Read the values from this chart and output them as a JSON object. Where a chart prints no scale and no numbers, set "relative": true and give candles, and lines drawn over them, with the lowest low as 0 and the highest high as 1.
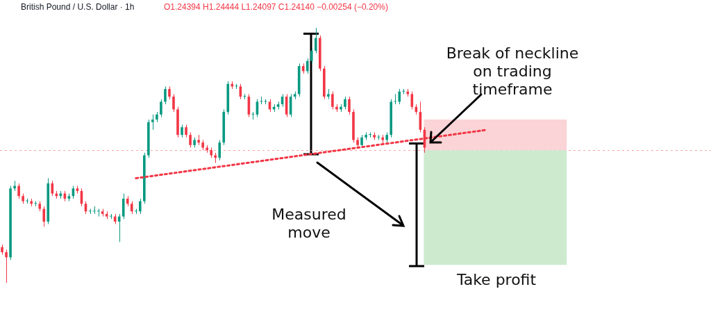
{
  "chart_data": {
    "type": "candlestick",
    "relative": true,
    "title": "British Pound / U.S. Dollar · 1h",
    "subtitle": "O1.24394 H1.24444 L1.24097 C1.24140 −0.00254 (−0.20%)",
    "tick_labels": false,
    "categories": [
      null,
      null,
      null,
      null,
      null,
      null,
      null,
      null,
      null,
      null,
      null,
      null,
      null,
      null,
      null,
      null,
      null,
      null,
      null,
      null,
      null,
      null,
      null,
      null,
      null,
      null,
      null,
      null,
      null,
      null,
      null,
      null,
      null,
      null,
      null,
      null,
      null,
      null,
      null,
      null,
      null,
      null,
      null,
      null,
      null,
      null,
      null,
      null,
      null,
      null,
      null,
      null,
      null,
      null,
      null,
      null,
      null,
      null,
      null,
      null,
      null,
      null,
      null,
      null,
      null,
      null,
      null,
      null,
      null,
      null,
      null,
      null,
      null,
      null,
      null,
      null,
      null,
      null,
      null,
      null,
      null,
      null,
      null,
      null,
      null,
      null,
      null,
      null,
      null,
      null,
      null,
      null,
      null,
      null,
      null,
      null,
      null,
      null,
      null,
      null,
      null,
      null,
      null,
      null,
      null,
      null,
      null,
      null,
      null,
      null,
      null,
      null,
      null,
      null,
      null,
      null,
      null,
      null,
      null,
      null,
      null,
      null,
      null,
      null,
      null,
      null,
      null,
      null,
      null,
      null,
      null,
      null,
      null,
      null,
      null,
      null,
      null,
      null,
      null,
      null,
      null,
      null,
      null,
      null,
      null,
      null,
      null,
      null,
      null,
      null,
      null,
      null,
      null,
      null,
      null,
      null,
      null,
      null,
      null,
      null,
      null,
      null,
      null,
      null,
      null,
      null,
      null,
      null,
      null,
      null
    ],
    "ohlc": [
      [
        0.14,
        0.15,
        0.11,
        0.12
      ],
      [
        0.12,
        0.13,
        0.0,
        0.1
      ],
      [
        0.1,
        0.38,
        0.09,
        0.37
      ],
      [
        0.37,
        0.4,
        0.36,
        0.38
      ],
      [
        0.38,
        0.39,
        0.33,
        0.34
      ],
      [
        0.34,
        0.35,
        0.31,
        0.32
      ],
      [
        0.32,
        0.33,
        0.31,
        0.32
      ],
      [
        0.32,
        0.33,
        0.3,
        0.31
      ],
      [
        0.31,
        0.32,
        0.3,
        0.31
      ],
      [
        0.31,
        0.32,
        0.28,
        0.29
      ],
      [
        0.29,
        0.3,
        0.22,
        0.24
      ],
      [
        0.24,
        0.41,
        0.23,
        0.39
      ],
      [
        0.39,
        0.4,
        0.34,
        0.35
      ],
      [
        0.35,
        0.36,
        0.33,
        0.34
      ],
      [
        0.34,
        0.36,
        0.33,
        0.35
      ],
      [
        0.35,
        0.36,
        0.32,
        0.33
      ],
      [
        0.33,
        0.35,
        0.32,
        0.34
      ],
      [
        0.34,
        0.38,
        0.33,
        0.37
      ],
      [
        0.37,
        0.38,
        0.35,
        0.36
      ],
      [
        0.36,
        0.37,
        0.3,
        0.31
      ],
      [
        0.31,
        0.32,
        0.27,
        0.28
      ],
      [
        0.28,
        0.29,
        0.27,
        0.28
      ],
      [
        0.28,
        0.3,
        0.27,
        0.28
      ],
      [
        0.28,
        0.29,
        0.26,
        0.28
      ],
      [
        0.28,
        0.29,
        0.26,
        0.27
      ],
      [
        0.27,
        0.28,
        0.25,
        0.26
      ],
      [
        0.26,
        0.27,
        0.25,
        0.26
      ],
      [
        0.26,
        0.27,
        0.23,
        0.24
      ],
      [
        0.24,
        0.27,
        0.16,
        0.26
      ],
      [
        0.26,
        0.35,
        0.25,
        0.33
      ],
      [
        0.33,
        0.34,
        0.3,
        0.31
      ],
      [
        0.31,
        0.32,
        0.27,
        0.28
      ],
      [
        0.28,
        0.29,
        0.27,
        0.28
      ],
      [
        0.28,
        0.33,
        0.27,
        0.32
      ],
      [
        0.32,
        0.51,
        0.31,
        0.5
      ],
      [
        0.5,
        0.64,
        0.49,
        0.63
      ],
      [
        0.63,
        0.66,
        0.6,
        0.64
      ],
      [
        0.64,
        0.67,
        0.63,
        0.66
      ],
      [
        0.66,
        0.72,
        0.65,
        0.71
      ],
      [
        0.71,
        0.77,
        0.7,
        0.76
      ],
      [
        0.76,
        0.77,
        0.72,
        0.73
      ],
      [
        0.73,
        0.74,
        0.67,
        0.68
      ],
      [
        0.68,
        0.69,
        0.57,
        0.58
      ],
      [
        0.58,
        0.62,
        0.57,
        0.61
      ],
      [
        0.61,
        0.62,
        0.57,
        0.58
      ],
      [
        0.58,
        0.59,
        0.53,
        0.54
      ],
      [
        0.54,
        0.57,
        0.53,
        0.56
      ],
      [
        0.56,
        0.58,
        0.54,
        0.55
      ],
      [
        0.55,
        0.56,
        0.52,
        0.53
      ],
      [
        0.53,
        0.54,
        0.51,
        0.52
      ],
      [
        0.52,
        0.53,
        0.49,
        0.5
      ],
      [
        0.5,
        0.51,
        0.47,
        0.49
      ],
      [
        0.49,
        0.56,
        0.48,
        0.55
      ],
      [
        0.55,
        0.68,
        0.54,
        0.67
      ],
      [
        0.67,
        0.79,
        0.66,
        0.78
      ],
      [
        0.78,
        0.79,
        0.76,
        0.77
      ],
      [
        0.77,
        0.78,
        0.76,
        0.77
      ],
      [
        0.77,
        0.78,
        0.72,
        0.73
      ],
      [
        0.73,
        0.74,
        0.72,
        0.73
      ],
      [
        0.73,
        0.74,
        0.65,
        0.66
      ],
      [
        0.66,
        0.67,
        0.64,
        0.66
      ],
      [
        0.66,
        0.72,
        0.65,
        0.71
      ],
      [
        0.71,
        0.73,
        0.7,
        0.71
      ],
      [
        0.71,
        0.72,
        0.7,
        0.71
      ],
      [
        0.71,
        0.72,
        0.67,
        0.68
      ],
      [
        0.68,
        0.7,
        0.67,
        0.69
      ],
      [
        0.69,
        0.71,
        0.68,
        0.7
      ],
      [
        0.7,
        0.74,
        0.69,
        0.73
      ],
      [
        0.73,
        0.74,
        0.65,
        0.66
      ],
      [
        0.66,
        0.74,
        0.65,
        0.73
      ],
      [
        0.73,
        0.75,
        0.72,
        0.74
      ],
      [
        0.74,
        0.86,
        0.73,
        0.85
      ],
      [
        0.85,
        0.86,
        0.82,
        0.83
      ],
      [
        0.83,
        0.88,
        0.82,
        0.87
      ],
      [
        0.87,
        0.92,
        0.86,
        0.91
      ],
      [
        0.91,
        1.0,
        0.9,
        0.96
      ],
      [
        0.96,
        0.97,
        0.83,
        0.84
      ],
      [
        0.84,
        0.85,
        0.72,
        0.73
      ],
      [
        0.73,
        0.76,
        0.72,
        0.74
      ],
      [
        0.74,
        0.75,
        0.68,
        0.69
      ],
      [
        0.69,
        0.7,
        0.67,
        0.68
      ],
      [
        0.68,
        0.7,
        0.67,
        0.69
      ],
      [
        0.69,
        0.73,
        0.68,
        0.72
      ],
      [
        0.72,
        0.73,
        0.66,
        0.67
      ],
      [
        0.67,
        0.68,
        0.55,
        0.56
      ],
      [
        0.56,
        0.57,
        0.53,
        0.54
      ],
      [
        0.54,
        0.58,
        0.53,
        0.57
      ],
      [
        0.57,
        0.59,
        0.56,
        0.58
      ],
      [
        0.58,
        0.59,
        0.57,
        0.58
      ],
      [
        0.58,
        0.59,
        0.56,
        0.57
      ],
      [
        0.57,
        0.58,
        0.56,
        0.57
      ],
      [
        0.57,
        0.58,
        0.54,
        0.56
      ],
      [
        0.56,
        0.59,
        0.55,
        0.58
      ],
      [
        0.58,
        0.72,
        0.57,
        0.71
      ],
      [
        0.71,
        0.74,
        0.7,
        0.71
      ],
      [
        0.71,
        0.76,
        0.7,
        0.75
      ],
      [
        0.75,
        0.76,
        0.74,
        0.75
      ],
      [
        0.75,
        0.76,
        0.73,
        0.74
      ],
      [
        0.74,
        0.75,
        0.68,
        0.69
      ],
      [
        0.69,
        0.7,
        0.66,
        0.67
      ],
      [
        0.67,
        0.71,
        0.59,
        0.6
      ],
      [
        0.6,
        0.61,
        0.51,
        0.53
      ],
      null,
      null,
      null,
      null,
      null,
      null,
      null,
      null,
      null,
      null,
      null,
      null,
      null,
      null,
      null,
      null,
      null,
      null,
      null,
      null,
      null,
      null,
      null,
      null,
      null,
      null,
      null,
      null,
      null,
      null,
      null,
      null,
      null,
      null,
      null,
      null,
      null,
      null,
      null,
      null,
      null,
      null,
      null,
      null,
      null,
      null,
      null,
      null,
      null,
      null,
      null,
      null,
      null,
      null,
      null,
      null,
      null,
      null,
      null,
      null,
      null,
      null,
      null,
      null,
      null,
      null,
      null,
      null
    ],
    "series": [
      {
        "type": "line",
        "color": "#f23645",
        "line_style": "dotted",
        "values": [
          null,
          null,
          null,
          null,
          null,
          null,
          null,
          null,
          null,
          null,
          null,
          null,
          null,
          null,
          null,
          null,
          null,
          null,
          null,
          null,
          null,
          null,
          null,
          null,
          null,
          null,
          null,
          null,
          null,
          null,
          null,
          null,
          0.41,
          null,
          null,
          null,
          null,
          null,
          null,
          null,
          null,
          null,
          null,
          null,
          null,
          null,
          null,
          null,
          null,
          null,
          null,
          null,
          null,
          null,
          null,
          null,
          null,
          null,
          null,
          null,
          null,
          null,
          null,
          null,
          null,
          null,
          null,
          null,
          null,
          null,
          null,
          null,
          null,
          null,
          null,
          null,
          null,
          null,
          null,
          null,
          null,
          null,
          null,
          null,
          null,
          null,
          null,
          null,
          null,
          null,
          null,
          null,
          null,
          null,
          null,
          null,
          null,
          null,
          null,
          null,
          null,
          null,
          null,
          null,
          null,
          null,
          null,
          null,
          null,
          null,
          null,
          null,
          null,
          null,
          null,
          null,
          0.6,
          null,
          null,
          null,
          null,
          null,
          null,
          null,
          null,
          null,
          null,
          null,
          null,
          null,
          null,
          null,
          null,
          null,
          null,
          null,
          null,
          null,
          null,
          null,
          null,
          null,
          null,
          null,
          null,
          null,
          null,
          null,
          null,
          null,
          null,
          null,
          null,
          null,
          null,
          null,
          null,
          null,
          null,
          null,
          null,
          null,
          null,
          null,
          null,
          null,
          null,
          null,
          null,
          null
        ]
      }
    ],
    "bands": [
      {
        "axis": "y",
        "from": 0.52,
        "to": 0.64,
        "color": "#fad4d6"
      },
      {
        "axis": "y",
        "from": 0.07,
        "to": 0.52,
        "color": "#cdeacf"
      }
    ],
    "ref_lines": [
      {
        "axis": "y",
        "value": 0.52,
        "color": "#f7a1a8",
        "line_style": "dotted"
      }
    ],
    "annotations": [
      "Break of neckline on trading timeframe",
      "Measured move",
      "Take profit"
    ],
    "legend": false
  }
}
